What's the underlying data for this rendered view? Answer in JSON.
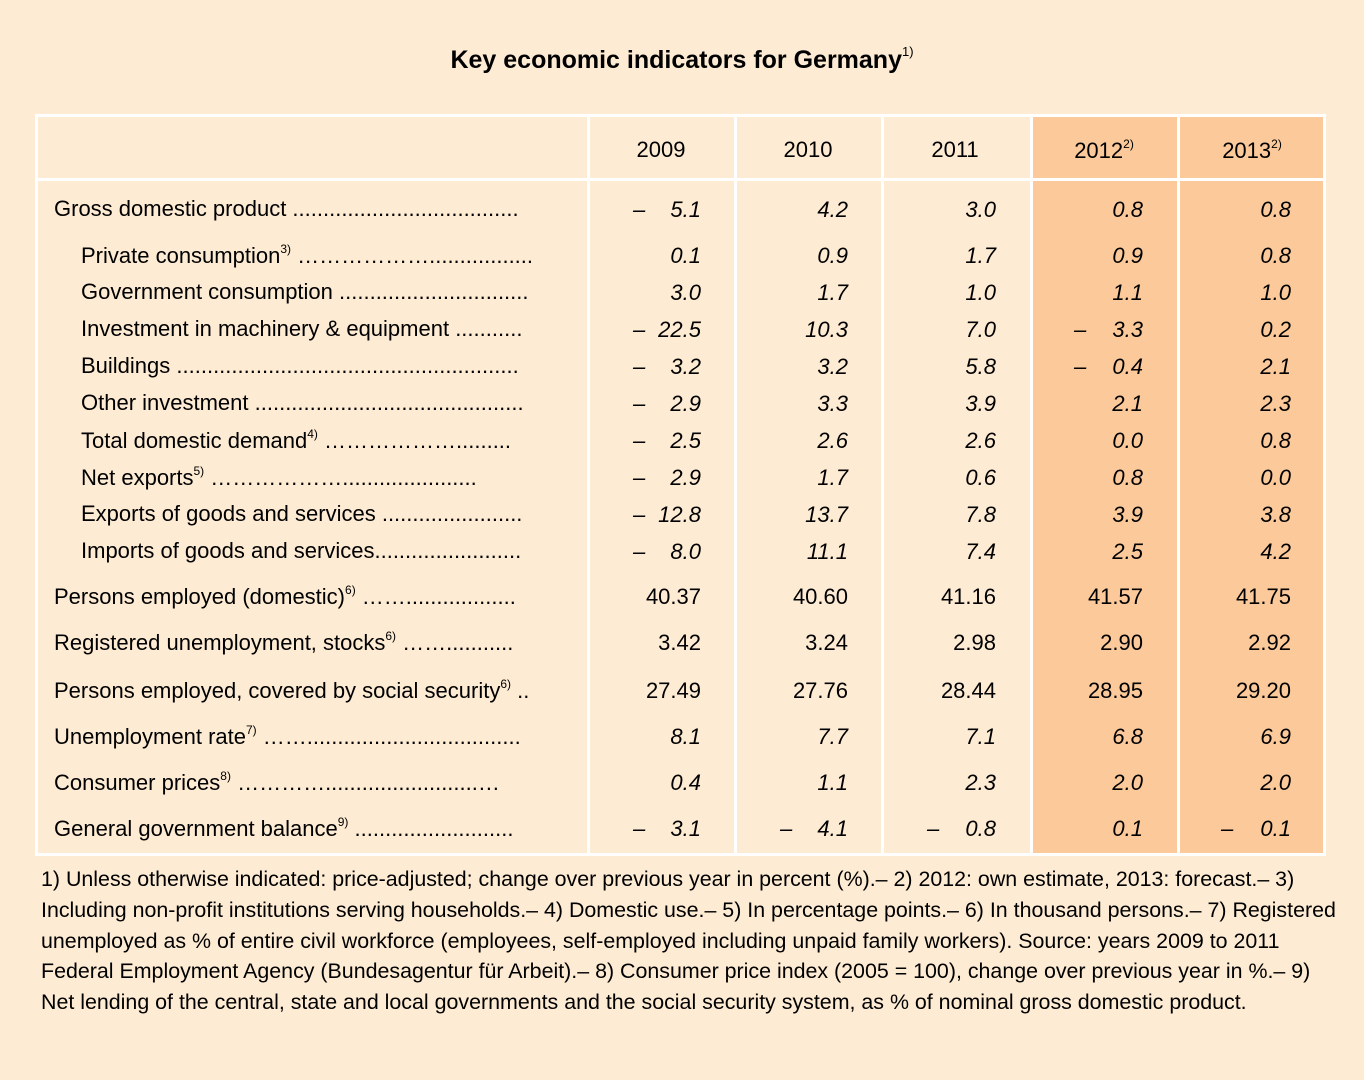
{
  "chart_data": {
    "type": "table",
    "title": "Key economic indicators for Germany",
    "title_note": "1)",
    "columns": [
      {
        "label": "2009",
        "note": ""
      },
      {
        "label": "2010",
        "note": ""
      },
      {
        "label": "2011",
        "note": ""
      },
      {
        "label": "2012",
        "note": "2)"
      },
      {
        "label": "2013",
        "note": "2)"
      }
    ],
    "highlight_color": "#fbc99a",
    "rows": [
      {
        "label": "Gross domestic product",
        "note": "",
        "leader": " .....................................",
        "indent": false,
        "italic": true,
        "values": [
          "–  5.1",
          "4.2",
          "3.0",
          "0.8",
          "0.8"
        ]
      },
      {
        "label": "Private consumption",
        "note": "3)",
        "leader": " ……………….................",
        "indent": true,
        "italic": true,
        "values": [
          "0.1",
          "0.9",
          "1.7",
          "0.9",
          "0.8"
        ]
      },
      {
        "label": "Government consumption",
        "note": "",
        "leader": " ...............................",
        "indent": true,
        "italic": true,
        "values": [
          "3.0",
          "1.7",
          "1.0",
          "1.1",
          "1.0"
        ]
      },
      {
        "label": "Investment in machinery & equipment",
        "note": "",
        "leader": " ...........",
        "indent": true,
        "italic": true,
        "values": [
          "– 22.5",
          "10.3",
          "7.0",
          "–  3.3",
          "0.2"
        ]
      },
      {
        "label": "Buildings",
        "note": "",
        "leader": " ........................................................",
        "indent": true,
        "italic": true,
        "values": [
          "–  3.2",
          "3.2",
          "5.8",
          "–  0.4",
          "2.1"
        ]
      },
      {
        "label": "Other investment",
        "note": "",
        "leader": " ............................................",
        "indent": true,
        "italic": true,
        "values": [
          "–  2.9",
          "3.3",
          "3.9",
          "2.1",
          "2.3"
        ]
      },
      {
        "label": "Total domestic demand",
        "note": "4)",
        "leader": " ……………….........",
        "indent": true,
        "italic": true,
        "values": [
          "–  2.5",
          "2.6",
          "2.6",
          "0.0",
          "0.8"
        ]
      },
      {
        "label": "Net exports",
        "note": "5)",
        "leader": " ………………......................",
        "indent": true,
        "italic": true,
        "values": [
          "–  2.9",
          "1.7",
          "0.6",
          "0.8",
          "0.0"
        ]
      },
      {
        "label": "Exports of goods and services",
        "note": "",
        "leader": " .......................",
        "indent": true,
        "italic": true,
        "values": [
          "– 12.8",
          "13.7",
          "7.8",
          "3.9",
          "3.8"
        ]
      },
      {
        "label": "Imports of goods and services",
        "note": "",
        "leader": "........................",
        "indent": true,
        "italic": true,
        "values": [
          "–  8.0",
          "11.1",
          "7.4",
          "2.5",
          "4.2"
        ]
      },
      {
        "label": "Persons employed (domestic)",
        "note": "6)",
        "leader": " ……..................",
        "indent": false,
        "italic": false,
        "values": [
          "40.37",
          "40.60",
          "41.16",
          "41.57",
          "41.75"
        ]
      },
      {
        "label": "Registered unemployment, stocks",
        "note": "6)",
        "leader": " ……...........",
        "indent": false,
        "italic": false,
        "values": [
          "3.42",
          "3.24",
          "2.98",
          "2.90",
          "2.92"
        ]
      },
      {
        "label": "Persons employed, covered by social security",
        "note": "6)",
        "leader": " ..",
        "indent": false,
        "italic": false,
        "values": [
          "27.49",
          "27.76",
          "28.44",
          "28.95",
          "29.20"
        ]
      },
      {
        "label": "Unemployment rate",
        "note": "7)",
        "leader": " ……...................................",
        "indent": false,
        "italic": true,
        "values": [
          "8.1",
          "7.7",
          "7.1",
          "6.8",
          "6.9"
        ]
      },
      {
        "label": "Consumer prices",
        "note": "8)",
        "leader": " ………….........................…",
        "indent": false,
        "italic": true,
        "values": [
          "0.4",
          "1.1",
          "2.3",
          "2.0",
          "2.0"
        ]
      },
      {
        "label": "General government balance",
        "note": "9)",
        "leader": " ..........................",
        "indent": false,
        "italic": true,
        "values": [
          "–  3.1",
          "–  4.1",
          "–  0.8",
          "0.1",
          "–  0.1"
        ]
      }
    ],
    "footnotes": "1) Unless otherwise indicated: price-adjusted; change over previous year in percent (%).– 2) 2012: own estimate, 2013: forecast.– 3) Including non-profit institutions serving households.– 4) Domestic use.– 5) In percentage points.– 6) In thousand persons.– 7) Registered unemployed as % of entire civil workforce (employees, self-employed including unpaid family workers). Source: years 2009 to 2011 Federal Employment Agency (Bundesagentur für Arbeit).– 8) Consumer price index (2005 = 100), change over previous year in %.– 9) Net lending of the central, state and local governments and the social security system, as % of nominal gross domestic product."
  }
}
